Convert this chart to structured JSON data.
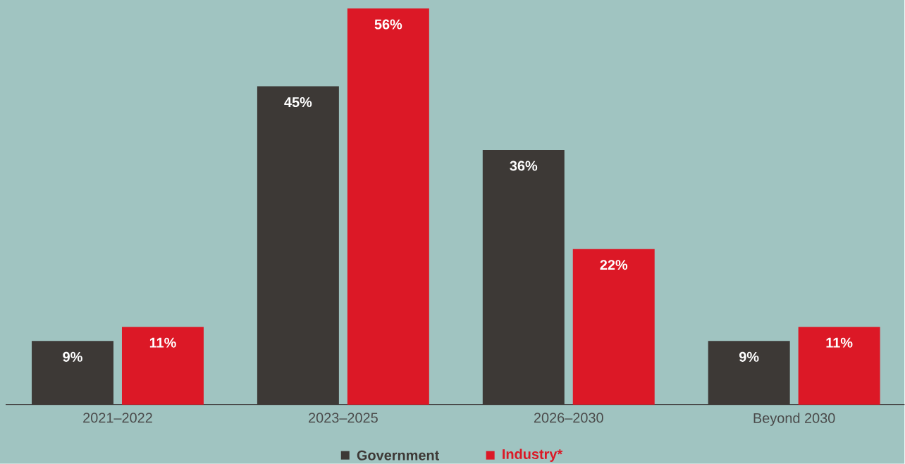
{
  "chart_data": {
    "type": "bar",
    "categories": [
      "2021–2022",
      "2023–2025",
      "2026–2030",
      "Beyond 2030"
    ],
    "series": [
      {
        "name": "Government",
        "color": "#3d3936",
        "values": [
          9,
          45,
          36,
          9
        ],
        "value_labels": [
          "9%",
          "45%",
          "36%",
          "9%"
        ]
      },
      {
        "name": "Industry*",
        "color": "#dc1826",
        "values": [
          11,
          56,
          22,
          11
        ],
        "value_labels": [
          "11%",
          "56%",
          "22%",
          "11%"
        ]
      }
    ],
    "legend": "bottom",
    "grid": false
  }
}
